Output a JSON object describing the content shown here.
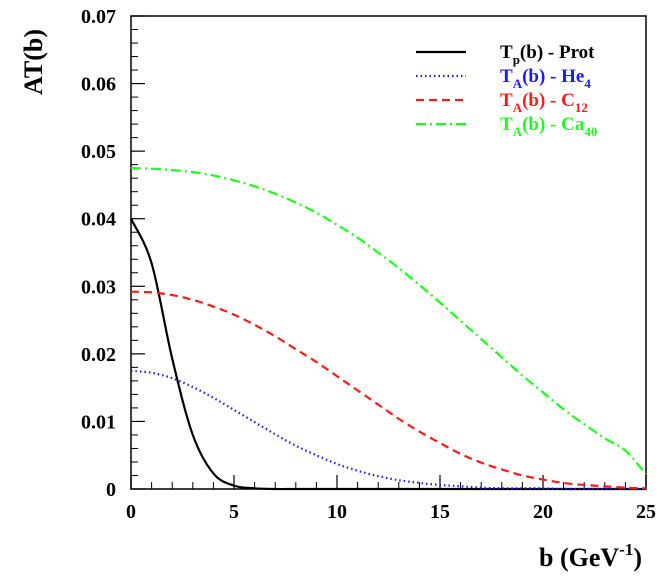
{
  "chart_data": {
    "type": "line",
    "title": "",
    "xlabel": "b (GeV",
    "xlabel_sup": "-1",
    "xlabel_close": ")",
    "ylabel": "AT(b)",
    "xlim": [
      0,
      25
    ],
    "ylim": [
      0,
      0.07
    ],
    "x_ticks": [
      0,
      5,
      10,
      15,
      20,
      25
    ],
    "x_tick_labels": [
      "0",
      "5",
      "10",
      "15",
      "20",
      "25"
    ],
    "y_ticks": [
      0,
      0.01,
      0.02,
      0.03,
      0.04,
      0.05,
      0.06,
      0.07
    ],
    "y_tick_labels": [
      "0",
      "0.01",
      "0.02",
      "0.03",
      "0.04",
      "0.05",
      "0.06",
      "0.07"
    ],
    "grid": false,
    "legend_position": "top-right",
    "x": [
      0,
      1,
      2,
      3,
      4,
      5,
      6,
      7,
      8,
      9,
      10,
      11,
      12,
      13,
      14,
      15,
      16,
      17,
      18,
      19,
      20,
      21,
      22,
      23,
      24,
      25
    ],
    "series": [
      {
        "name": "Prot",
        "legend": {
          "main": "T",
          "sub": "p",
          "rest": "(b) - Prot",
          "tail_sub": ""
        },
        "color": "#000000",
        "dash": "solid",
        "values": [
          0.04,
          0.0334,
          0.0193,
          0.008,
          0.0023,
          0.0005,
          0.0001,
          0,
          0,
          0,
          0,
          0,
          0,
          0,
          0,
          0,
          0,
          0,
          0,
          0,
          0,
          0,
          0,
          0,
          0,
          0
        ]
      },
      {
        "name": "He4",
        "legend": {
          "main": "T",
          "sub": "A",
          "rest": "(b) - He",
          "tail_sub": "4"
        },
        "color": "#1a1aff",
        "dash": "dotted",
        "values": [
          0.0175,
          0.0172,
          0.0164,
          0.0151,
          0.0135,
          0.0117,
          0.0099,
          0.0081,
          0.0064,
          0.005,
          0.0037,
          0.0027,
          0.0019,
          0.0013,
          0.0009,
          0.0006,
          0.0004,
          0.0002,
          0.0001,
          0.0001,
          0.0001,
          0,
          0,
          0,
          0,
          0
        ]
      },
      {
        "name": "C12",
        "legend": {
          "main": "T",
          "sub": "A",
          "rest": "(b) - C",
          "tail_sub": "12"
        },
        "color": "#ff1a1a",
        "dash": "dashed",
        "values": [
          0.0292,
          0.0291,
          0.0287,
          0.028,
          0.027,
          0.0258,
          0.0243,
          0.0226,
          0.0207,
          0.0188,
          0.0167,
          0.0146,
          0.0125,
          0.0104,
          0.0085,
          0.0068,
          0.0052,
          0.0039,
          0.0029,
          0.002,
          0.0014,
          0.0009,
          0.0006,
          0.0004,
          0.0002,
          0.0001
        ]
      },
      {
        "name": "Ca40",
        "legend": {
          "main": "T",
          "sub": "A",
          "rest": "(b) - Ca",
          "tail_sub": "40"
        },
        "color": "#1aff1a",
        "dash": "dashdot",
        "values": [
          0.0475,
          0.0474,
          0.0472,
          0.0469,
          0.0464,
          0.0457,
          0.0448,
          0.0437,
          0.0424,
          0.0409,
          0.0391,
          0.0372,
          0.035,
          0.0327,
          0.0302,
          0.0276,
          0.0249,
          0.0222,
          0.0195,
          0.0168,
          0.0143,
          0.0118,
          0.0096,
          0.0075,
          0.0057,
          0.0022
        ]
      }
    ]
  }
}
